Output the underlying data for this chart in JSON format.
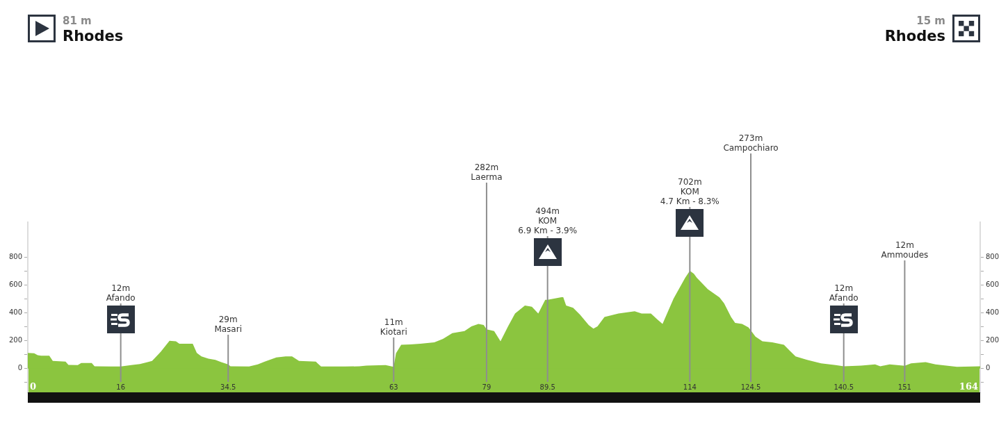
{
  "chart_data": {
    "type": "area",
    "color": "#8bc53f",
    "x": [
      0,
      1.1,
      1.7,
      2.3,
      3.7,
      4.3,
      6.5,
      7,
      8.6,
      9.2,
      11,
      11.5,
      14.2,
      16,
      17.8,
      19.3,
      20.5,
      21.4,
      22.9,
      24.4,
      25.5,
      26.1,
      28.4,
      29.1,
      29.9,
      31.1,
      32.3,
      33.3,
      34.5,
      34.9,
      38.1,
      39.6,
      40.8,
      42.8,
      44.4,
      45.5,
      46.7,
      49.6,
      49.9,
      50.5,
      54.7,
      57.1,
      58.3,
      61.6,
      63,
      63.4,
      64.3,
      65.9,
      67.6,
      70,
      71.5,
      73.1,
      75.2,
      76.4,
      77.6,
      78.5,
      79,
      80.3,
      81.4,
      82.7,
      83.9,
      85.6,
      86.8,
      87.9,
      89.1,
      89.5,
      91.9,
      92.2,
      92.7,
      93.9,
      95.1,
      96.6,
      97.4,
      98.1,
      99.3,
      101.7,
      104.5,
      105.7,
      107.3,
      108.4,
      109.3,
      111.2,
      113.2,
      114,
      114.7,
      115.2,
      117.1,
      119.1,
      119.9,
      121.1,
      121.8,
      123,
      124.1,
      124.5,
      125.3,
      126.5,
      128.2,
      130.2,
      131.2,
      132.2,
      134.2,
      136.6,
      139.1,
      140.5,
      143.5,
      145.9,
      146.8,
      148.4,
      151,
      152.1,
      154.6,
      156.3,
      160,
      164
    ],
    "values": [
      112,
      110,
      96,
      93,
      93,
      55,
      50,
      27,
      25,
      40,
      40,
      17,
      15,
      15,
      25,
      33,
      45,
      55,
      121,
      200,
      196,
      179,
      179,
      113,
      88,
      71,
      63,
      46,
      30,
      17,
      15,
      30,
      50,
      80,
      88,
      88,
      55,
      50,
      38,
      15,
      15,
      17,
      22,
      25,
      13,
      110,
      171,
      174,
      179,
      189,
      214,
      254,
      270,
      303,
      320,
      313,
      282,
      270,
      196,
      303,
      395,
      453,
      444,
      395,
      494,
      494,
      512,
      512,
      453,
      436,
      387,
      312,
      287,
      303,
      370,
      395,
      411,
      395,
      395,
      353,
      320,
      502,
      652,
      702,
      680,
      652,
      569,
      511,
      469,
      370,
      328,
      320,
      295,
      275,
      229,
      196,
      188,
      171,
      129,
      88,
      63,
      38,
      25,
      17,
      22,
      30,
      17,
      30,
      20,
      38,
      46,
      30,
      13,
      17
    ],
    "xlim": [
      0,
      164
    ],
    "xticks": [
      0,
      16,
      34.5,
      63,
      79,
      89.5,
      114,
      124.5,
      140.5,
      151,
      164
    ],
    "ylim": [
      -170,
      1050
    ],
    "yticks": [
      {
        "value": -100,
        "label": null
      },
      0,
      {
        "value": 100,
        "label": null
      },
      200,
      {
        "value": 300,
        "label": null
      },
      400,
      {
        "value": 500,
        "label": null
      },
      600,
      {
        "value": 700,
        "label": null
      },
      800
    ],
    "y2lim": [
      -170,
      1050
    ],
    "y2ticks": [
      {
        "value": -100,
        "label": null
      },
      0,
      {
        "value": 100,
        "label": null
      },
      200,
      {
        "value": 300,
        "label": null
      },
      400,
      {
        "value": 500,
        "label": null
      },
      600,
      {
        "value": 700,
        "label": null
      },
      800
    ],
    "ref_lines": [
      {
        "axis": "x",
        "value": 16,
        "label": "12m\nAfando",
        "color": "#8e8e8e"
      },
      {
        "axis": "x",
        "value": 34.5,
        "label": "29m\nMasari",
        "color": "#8e8e8e"
      },
      {
        "axis": "x",
        "value": 63,
        "label": "11m\nKiotari",
        "color": "#8e8e8e"
      },
      {
        "axis": "x",
        "value": 79,
        "label": "282m\nLaerma",
        "color": "#8e8e8e"
      },
      {
        "axis": "x",
        "value": 89.5,
        "label": "494m\nKOM\n6.9 Km - 3.9%",
        "color": "#8e8e8e"
      },
      {
        "axis": "x",
        "value": 114,
        "label": "702m\nKOM\n4.7 Km - 8.3%",
        "color": "#8e8e8e"
      },
      {
        "axis": "x",
        "value": 124.5,
        "label": "273m\nCampochiaro",
        "color": "#8e8e8e"
      },
      {
        "axis": "x",
        "value": 140.5,
        "label": "12m\nAfando",
        "color": "#8e8e8e"
      },
      {
        "axis": "x",
        "value": 151,
        "label": "12m\nAmmoudes",
        "color": "#8e8e8e"
      }
    ],
    "annotations": [
      "81 m\nRhodes",
      "15 m\nRhodes"
    ]
  }
}
